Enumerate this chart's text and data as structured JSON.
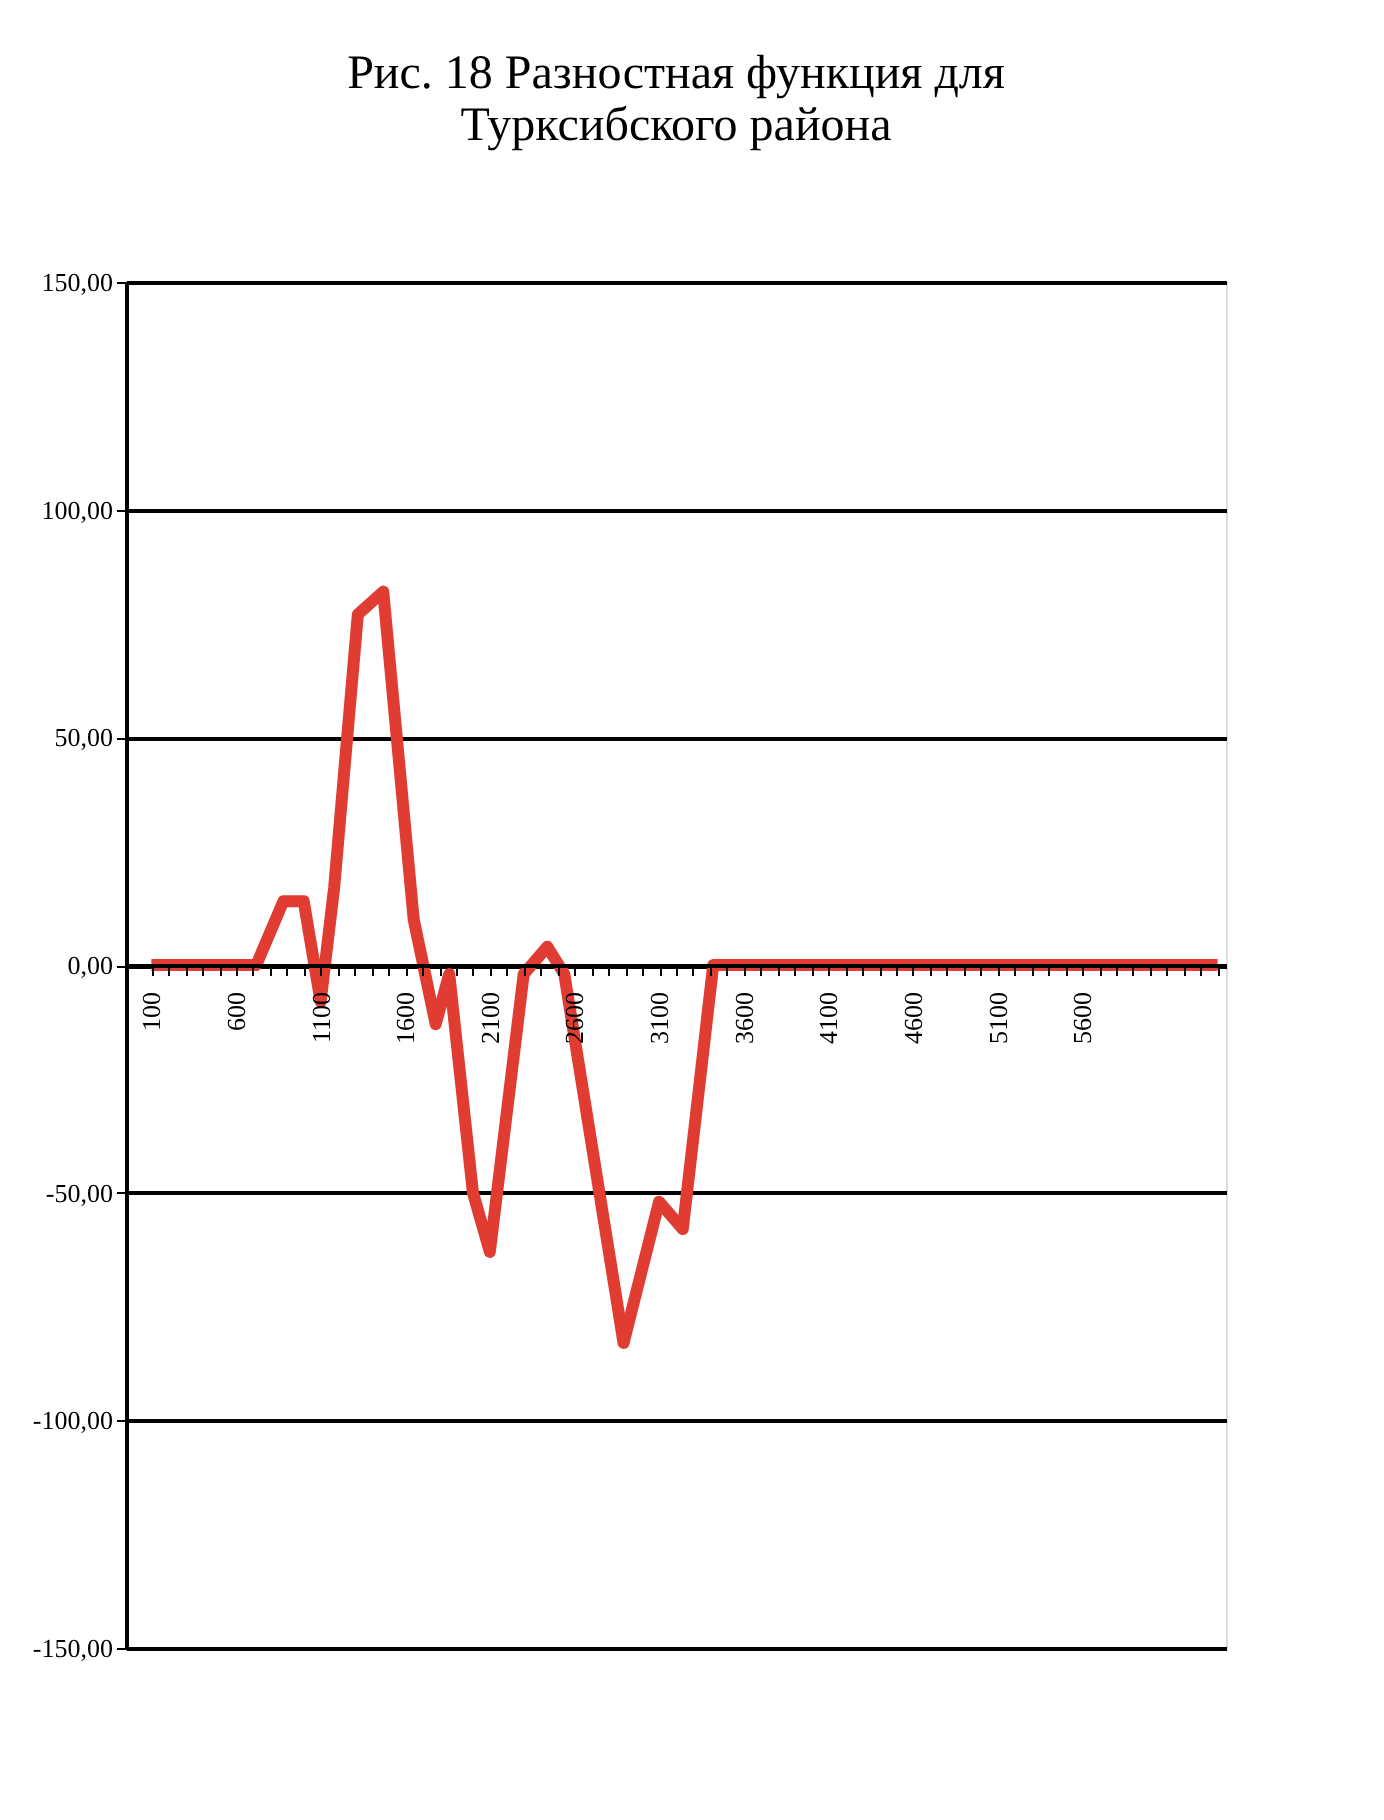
{
  "chart_data": {
    "type": "line",
    "title": "Рис. 18 Разностная функция для\nТурксибского района",
    "series": [
      {
        "color": "#e03c31",
        "x": [
          100,
          720,
          880,
          1000,
          1100,
          1180,
          1320,
          1470,
          1650,
          1780,
          1860,
          2000,
          2100,
          2300,
          2440,
          2540,
          2890,
          3100,
          3240,
          3420,
          6400
        ],
        "values": [
          0,
          0,
          14,
          14,
          -8,
          17,
          77,
          82,
          10,
          -13,
          -2,
          -50,
          -63,
          -2,
          4,
          -2,
          -83,
          -52,
          -58,
          0,
          0
        ]
      }
    ],
    "xlim": [
      -50,
      6450
    ],
    "xticks": [
      100,
      {
        "value": 200,
        "label": null
      },
      {
        "value": 300,
        "label": null
      },
      {
        "value": 400,
        "label": null
      },
      {
        "value": 500,
        "label": null
      },
      600,
      {
        "value": 700,
        "label": null
      },
      {
        "value": 800,
        "label": null
      },
      {
        "value": 900,
        "label": null
      },
      {
        "value": 1000,
        "label": null
      },
      1100,
      {
        "value": 1200,
        "label": null
      },
      {
        "value": 1300,
        "label": null
      },
      {
        "value": 1400,
        "label": null
      },
      {
        "value": 1500,
        "label": null
      },
      1600,
      {
        "value": 1700,
        "label": null
      },
      {
        "value": 1800,
        "label": null
      },
      {
        "value": 1900,
        "label": null
      },
      {
        "value": 2000,
        "label": null
      },
      2100,
      {
        "value": 2200,
        "label": null
      },
      {
        "value": 2300,
        "label": null
      },
      {
        "value": 2400,
        "label": null
      },
      {
        "value": 2500,
        "label": null
      },
      2600,
      {
        "value": 2700,
        "label": null
      },
      {
        "value": 2800,
        "label": null
      },
      {
        "value": 2900,
        "label": null
      },
      {
        "value": 3000,
        "label": null
      },
      3100,
      {
        "value": 3200,
        "label": null
      },
      {
        "value": 3300,
        "label": null
      },
      {
        "value": 3400,
        "label": null
      },
      {
        "value": 3500,
        "label": null
      },
      3600,
      {
        "value": 3700,
        "label": null
      },
      {
        "value": 3800,
        "label": null
      },
      {
        "value": 3900,
        "label": null
      },
      {
        "value": 4000,
        "label": null
      },
      4100,
      {
        "value": 4200,
        "label": null
      },
      {
        "value": 4300,
        "label": null
      },
      {
        "value": 4400,
        "label": null
      },
      {
        "value": 4500,
        "label": null
      },
      4600,
      {
        "value": 4700,
        "label": null
      },
      {
        "value": 4800,
        "label": null
      },
      {
        "value": 4900,
        "label": null
      },
      {
        "value": 5000,
        "label": null
      },
      5100,
      {
        "value": 5200,
        "label": null
      },
      {
        "value": 5300,
        "label": null
      },
      {
        "value": 5400,
        "label": null
      },
      {
        "value": 5500,
        "label": null
      },
      5600,
      {
        "value": 5700,
        "label": null
      },
      {
        "value": 5800,
        "label": null
      },
      {
        "value": 5900,
        "label": null
      },
      {
        "value": 6000,
        "label": null
      },
      {
        "value": 6100,
        "label": null
      },
      {
        "value": 6200,
        "label": null
      },
      {
        "value": 6300,
        "label": null
      },
      {
        "value": 6400,
        "label": null
      }
    ],
    "ylim": [
      -150,
      150
    ],
    "yticks": [
      {
        "value": -150,
        "label": "-150,00"
      },
      {
        "value": -100,
        "label": "-100,00"
      },
      {
        "value": -50,
        "label": "-50,00"
      },
      {
        "value": 0,
        "label": "0,00"
      },
      {
        "value": 50,
        "label": "50,00"
      },
      {
        "value": 100,
        "label": "100,00"
      },
      {
        "value": 150,
        "label": "150,00"
      }
    ],
    "grid": "y",
    "marker": "none",
    "line_style": "solid"
  }
}
